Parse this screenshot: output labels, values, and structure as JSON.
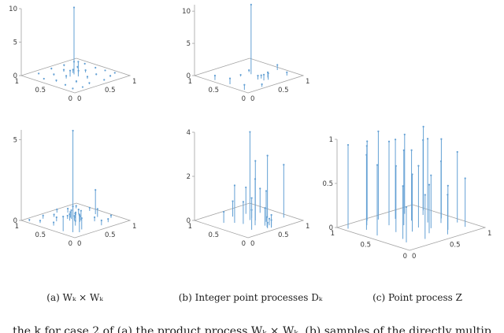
{
  "figure": {
    "captions": {
      "a": "(a) Wₖ × Wₖ",
      "b": "(b) Integer point processes Dₖ",
      "c": "(c) Point process Z"
    },
    "footer_text": "the k for case 2 of (a) the product process Wₖ × Wₖ, (b) samples of the directly multip",
    "colors": {
      "stem": "#63a0d4",
      "axis": "#a3a3a3",
      "tick_text": "#3a3a3a"
    }
  },
  "chart_data": [
    {
      "id": "a1",
      "type": "stem3",
      "title": "",
      "panel": "row1-left",
      "xlim": [
        0,
        1
      ],
      "ylim": [
        0,
        1
      ],
      "zlim": [
        0,
        10
      ],
      "xticks": [
        "0",
        "0.5",
        "1"
      ],
      "yticks": [
        "0",
        "0.5",
        "1"
      ],
      "zticks": [
        "0",
        "5",
        "10"
      ],
      "stems": [
        [
          0.52,
          0.55,
          10
        ],
        [
          0.5,
          0.45,
          2.2
        ],
        [
          0.42,
          0.52,
          0.9
        ],
        [
          0.08,
          0.12,
          0.15
        ],
        [
          0.22,
          0.08,
          0.1
        ],
        [
          0.38,
          0.12,
          0.2
        ],
        [
          0.62,
          0.09,
          0.12
        ],
        [
          0.78,
          0.14,
          0.18
        ],
        [
          0.92,
          0.2,
          0.1
        ],
        [
          0.12,
          0.3,
          0.12
        ],
        [
          0.3,
          0.28,
          0.25
        ],
        [
          0.52,
          0.3,
          0.3
        ],
        [
          0.7,
          0.32,
          0.15
        ],
        [
          0.9,
          0.36,
          0.1
        ],
        [
          0.15,
          0.5,
          0.2
        ],
        [
          0.33,
          0.5,
          0.4
        ],
        [
          0.68,
          0.5,
          0.35
        ],
        [
          0.88,
          0.52,
          0.15
        ],
        [
          0.1,
          0.68,
          0.1
        ],
        [
          0.3,
          0.7,
          0.2
        ],
        [
          0.5,
          0.72,
          0.3
        ],
        [
          0.73,
          0.7,
          0.2
        ],
        [
          0.9,
          0.74,
          0.12
        ],
        [
          0.2,
          0.88,
          0.1
        ],
        [
          0.45,
          0.9,
          0.15
        ],
        [
          0.66,
          0.88,
          0.18
        ],
        [
          0.86,
          0.9,
          0.1
        ],
        [
          0.55,
          0.6,
          0.5
        ],
        [
          0.6,
          0.55,
          0.35
        ]
      ]
    },
    {
      "id": "b1",
      "type": "stem3",
      "title": "",
      "panel": "row1-middle",
      "xlim": [
        0,
        1
      ],
      "ylim": [
        0,
        1
      ],
      "zlim": [
        0,
        11
      ],
      "xticks": [
        "0",
        "0.5",
        "1"
      ],
      "yticks": [
        "0",
        "0.5",
        "1"
      ],
      "zticks": [
        "0",
        "5",
        "10"
      ],
      "stems": [
        [
          0.56,
          0.52,
          10.8
        ],
        [
          0.5,
          0.22,
          0.9
        ],
        [
          0.56,
          0.2,
          1.0
        ],
        [
          0.62,
          0.27,
          0.8
        ],
        [
          0.47,
          0.3,
          0.6
        ],
        [
          0.53,
          0.3,
          0.5
        ],
        [
          0.05,
          0.12,
          0.8
        ],
        [
          0.08,
          0.42,
          0.9
        ],
        [
          0.06,
          0.68,
          0.7
        ],
        [
          0.3,
          0.05,
          0.4
        ],
        [
          0.92,
          0.4,
          0.8
        ],
        [
          0.85,
          0.15,
          0.5
        ],
        [
          0.6,
          0.6,
          0.3
        ],
        [
          0.4,
          0.55,
          0.25
        ]
      ]
    },
    {
      "id": "a2",
      "type": "stem3",
      "title": "",
      "panel": "row2-left",
      "xlim": [
        0,
        1
      ],
      "ylim": [
        0,
        1
      ],
      "zlim": [
        0,
        5.6
      ],
      "xticks": [
        "0",
        "0.5",
        "1"
      ],
      "yticks": [
        "0",
        "0.5",
        "1"
      ],
      "zticks": [
        "0",
        "5"
      ],
      "stems": [
        [
          0.5,
          0.55,
          5.5
        ],
        [
          0.14,
          0.18,
          1.6
        ],
        [
          0.2,
          0.12,
          1.1
        ],
        [
          0.08,
          0.3,
          0.9
        ],
        [
          0.3,
          0.18,
          0.7
        ],
        [
          0.86,
          0.5,
          1.5
        ],
        [
          0.8,
          0.4,
          0.5
        ],
        [
          0.45,
          0.45,
          0.5
        ],
        [
          0.5,
          0.42,
          0.35
        ],
        [
          0.55,
          0.45,
          0.6
        ],
        [
          0.48,
          0.5,
          0.3
        ],
        [
          0.52,
          0.52,
          0.45
        ],
        [
          0.57,
          0.5,
          0.25
        ],
        [
          0.44,
          0.55,
          0.4
        ],
        [
          0.5,
          0.58,
          0.55
        ],
        [
          0.56,
          0.57,
          0.3
        ],
        [
          0.47,
          0.62,
          0.2
        ],
        [
          0.53,
          0.63,
          0.35
        ],
        [
          0.1,
          0.75,
          0.15
        ],
        [
          0.25,
          0.85,
          0.2
        ],
        [
          0.4,
          0.8,
          0.15
        ],
        [
          0.65,
          0.8,
          0.25
        ],
        [
          0.85,
          0.85,
          0.15
        ],
        [
          0.9,
          0.65,
          0.2
        ],
        [
          0.7,
          0.65,
          0.3
        ],
        [
          0.3,
          0.65,
          0.25
        ],
        [
          0.15,
          0.55,
          0.2
        ],
        [
          0.35,
          0.35,
          0.3
        ],
        [
          0.65,
          0.3,
          0.25
        ],
        [
          0.75,
          0.15,
          0.2
        ],
        [
          0.6,
          0.12,
          0.3
        ],
        [
          0.9,
          0.25,
          0.15
        ],
        [
          0.05,
          0.9,
          0.1
        ],
        [
          0.55,
          0.9,
          0.2
        ]
      ]
    },
    {
      "id": "b2",
      "type": "stem3",
      "title": "",
      "panel": "row2-middle",
      "xlim": [
        0,
        1
      ],
      "ylim": [
        0,
        1
      ],
      "zlim": [
        0,
        4
      ],
      "xticks": [
        "0",
        "0.5",
        "1"
      ],
      "yticks": [
        "0",
        "0.5",
        "1"
      ],
      "zticks": [
        "0",
        "2",
        "4"
      ],
      "stems": [
        [
          0.52,
          0.5,
          4.0
        ],
        [
          0.56,
          0.44,
          2.7
        ],
        [
          0.42,
          0.3,
          2.1
        ],
        [
          0.62,
          0.3,
          1.4
        ],
        [
          0.3,
          0.56,
          1.7
        ],
        [
          0.76,
          0.42,
          2.8
        ],
        [
          0.82,
          0.62,
          1.1
        ],
        [
          0.26,
          0.2,
          0.9
        ],
        [
          0.5,
          0.2,
          0.8
        ],
        [
          0.66,
          0.72,
          1.2
        ],
        [
          0.46,
          0.76,
          0.7
        ],
        [
          0.2,
          0.66,
          0.5
        ],
        [
          0.9,
          0.26,
          2.4
        ],
        [
          0.35,
          0.45,
          1.0
        ],
        [
          0.6,
          0.55,
          0.9
        ],
        [
          0.48,
          0.14,
          0.45
        ],
        [
          0.52,
          0.1,
          0.55
        ],
        [
          0.55,
          0.17,
          0.3
        ],
        [
          0.5,
          0.08,
          0.35
        ],
        [
          0.45,
          0.1,
          0.25
        ]
      ]
    },
    {
      "id": "c",
      "type": "stem3",
      "title": "",
      "panel": "right",
      "xlim": [
        0,
        1
      ],
      "ylim": [
        0,
        1
      ],
      "zlim": [
        0,
        1
      ],
      "xticks": [
        "0",
        "0.5",
        "1"
      ],
      "yticks": [
        "0",
        "0.5",
        "1"
      ],
      "zticks": [
        "0",
        "0.5",
        "1"
      ],
      "stems": [
        [
          0.05,
          0.9,
          0.95
        ],
        [
          0.1,
          0.55,
          0.8
        ],
        [
          0.15,
          0.75,
          0.85
        ],
        [
          0.2,
          0.3,
          0.6
        ],
        [
          0.25,
          0.85,
          0.9
        ],
        [
          0.3,
          0.5,
          0.75
        ],
        [
          0.35,
          0.15,
          0.5
        ],
        [
          0.4,
          0.7,
          0.95
        ],
        [
          0.42,
          0.4,
          0.65
        ],
        [
          0.45,
          0.9,
          1.0
        ],
        [
          0.5,
          0.25,
          0.55
        ],
        [
          0.5,
          0.6,
          0.85
        ],
        [
          0.55,
          0.45,
          0.7
        ],
        [
          0.58,
          0.8,
          0.9
        ],
        [
          0.6,
          0.1,
          0.45
        ],
        [
          0.62,
          0.35,
          0.6
        ],
        [
          0.65,
          0.65,
          0.8
        ],
        [
          0.7,
          0.2,
          0.5
        ],
        [
          0.72,
          0.5,
          0.95
        ],
        [
          0.75,
          0.85,
          0.9
        ],
        [
          0.8,
          0.4,
          0.7
        ],
        [
          0.85,
          0.7,
          0.85
        ],
        [
          0.88,
          0.15,
          0.55
        ],
        [
          0.9,
          0.5,
          0.9
        ],
        [
          0.95,
          0.8,
          0.95
        ],
        [
          0.35,
          0.95,
          0.9
        ],
        [
          0.15,
          0.2,
          0.4
        ],
        [
          0.92,
          0.3,
          0.8
        ]
      ]
    }
  ]
}
